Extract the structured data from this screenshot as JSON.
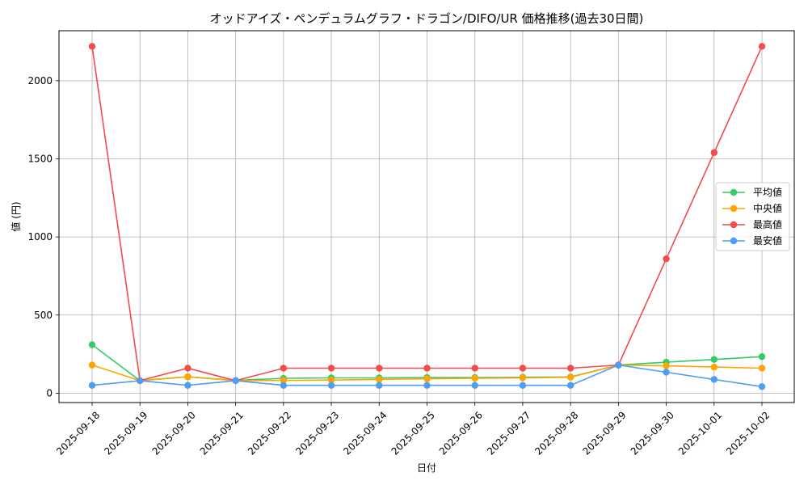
{
  "chart_data": {
    "type": "line",
    "title": "オッドアイズ・ペンデュラムグラフ・ドラゴン/DIFO/UR 価格推移(過去30日間)",
    "xlabel": "日付",
    "ylabel": "値 (円)",
    "ylim": [
      -60,
      2320
    ],
    "yticks": [
      0,
      500,
      1000,
      1500,
      2000
    ],
    "grid": true,
    "legend_position": "right",
    "categories": [
      "2025-09-18",
      "2025-09-19",
      "2025-09-20",
      "2025-09-21",
      "2025-09-22",
      "2025-09-23",
      "2025-09-24",
      "2025-09-25",
      "2025-09-26",
      "2025-09-27",
      "2025-09-28",
      "2025-09-29",
      "2025-09-30",
      "2025-10-01",
      "2025-10-02"
    ],
    "series": [
      {
        "name": "平均値",
        "color": "#33cc66",
        "values": [
          310,
          80,
          105,
          82,
          95,
          98,
          98,
          100,
          100,
          102,
          104,
          180,
          198,
          216,
          234
        ]
      },
      {
        "name": "中央値",
        "color": "#ffa500",
        "values": [
          180,
          80,
          105,
          80,
          82,
          84,
          88,
          92,
          95,
          98,
          102,
          180,
          175,
          167,
          160
        ]
      },
      {
        "name": "最高値",
        "color": "#f24c4c",
        "values": [
          2220,
          80,
          160,
          80,
          160,
          160,
          160,
          160,
          160,
          160,
          160,
          180,
          860,
          1540,
          2220
        ]
      },
      {
        "name": "最安値",
        "color": "#4d9ef5",
        "values": [
          50,
          80,
          50,
          80,
          50,
          50,
          50,
          50,
          50,
          50,
          50,
          180,
          134,
          88,
          42
        ]
      }
    ]
  }
}
